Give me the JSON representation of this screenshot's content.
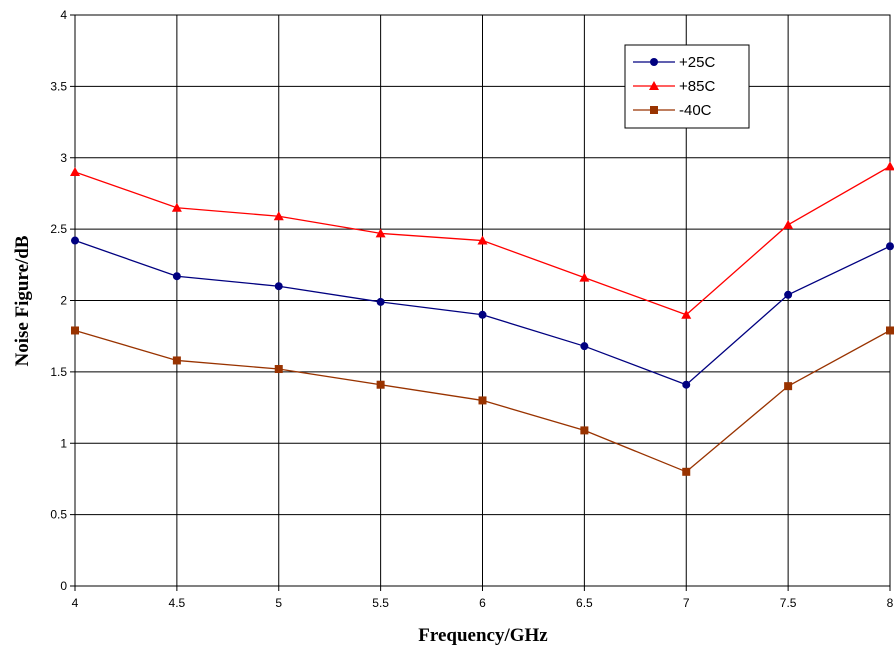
{
  "chart_data": {
    "type": "line",
    "title": "",
    "xlabel": "Frequency/GHz",
    "ylabel": "Noise Figure/dB",
    "xlim": [
      4,
      8
    ],
    "ylim": [
      0,
      4
    ],
    "x_ticks": [
      "4",
      "4.5",
      "5",
      "5.5",
      "6",
      "6.5",
      "7",
      "7.5",
      "8"
    ],
    "y_ticks": [
      "0",
      "0.5",
      "1",
      "1.5",
      "2",
      "2.5",
      "3",
      "3.5",
      "4"
    ],
    "grid": true,
    "legend_position": "top-right",
    "x": [
      4,
      4.5,
      5,
      5.5,
      6,
      6.5,
      7,
      7.5,
      8
    ],
    "series": [
      {
        "name": "+25C",
        "marker": "circle",
        "color": "#000080",
        "values": [
          2.42,
          2.17,
          2.1,
          1.99,
          1.9,
          1.68,
          1.41,
          2.04,
          2.38
        ]
      },
      {
        "name": "+85C",
        "marker": "triangle",
        "color": "#FF0000",
        "values": [
          2.9,
          2.65,
          2.59,
          2.47,
          2.42,
          2.16,
          1.9,
          2.53,
          2.94
        ]
      },
      {
        "name": "-40C",
        "marker": "square",
        "color": "#993300",
        "values": [
          1.79,
          1.58,
          1.52,
          1.41,
          1.3,
          1.09,
          0.8,
          1.4,
          1.79
        ]
      }
    ]
  }
}
